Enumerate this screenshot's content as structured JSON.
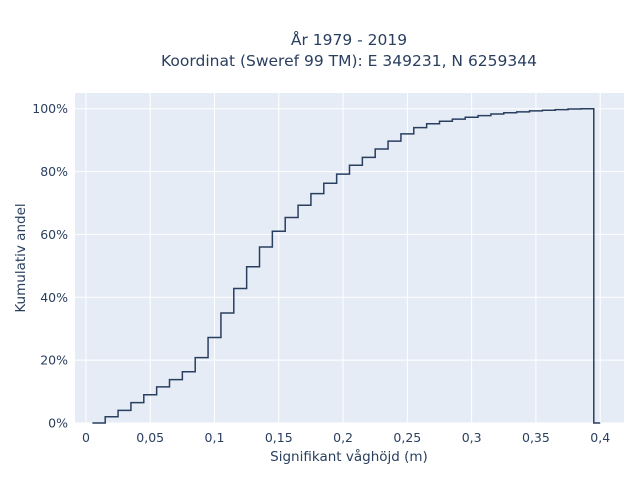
{
  "chart_data": {
    "type": "line",
    "line_shape": "step",
    "title_line1": "År 1979 - 2019",
    "title_line2": "Koordinat (Sweref 99 TM): E 349231, N 6259344",
    "xlabel": "Signifikant våghöjd (m)",
    "ylabel": "Kumulativ andel",
    "xlim": [
      -0.0085,
      0.4185
    ],
    "ylim": [
      0,
      1.05
    ],
    "grid": true,
    "x_ticks": [
      0,
      0.05,
      0.1,
      0.15,
      0.2,
      0.25,
      0.3,
      0.35,
      0.4
    ],
    "x_tick_labels": [
      "0",
      "0,05",
      "0,1",
      "0,15",
      "0,2",
      "0,25",
      "0,3",
      "0,35",
      "0,4"
    ],
    "y_ticks": [
      0,
      0.2,
      0.4,
      0.6,
      0.8,
      1.0
    ],
    "y_tick_labels": [
      "0%",
      "20%",
      "40%",
      "60%",
      "80%",
      "100%"
    ],
    "line_color": "#2a3f5f",
    "plot_bg": "#e5ecf6",
    "grid_color": "#ffffff",
    "series": [
      {
        "x": [
          0.01,
          0.02,
          0.03,
          0.04,
          0.05,
          0.06,
          0.07,
          0.08,
          0.09,
          0.1,
          0.11,
          0.12,
          0.13,
          0.14,
          0.15,
          0.16,
          0.17,
          0.18,
          0.19,
          0.2,
          0.21,
          0.22,
          0.23,
          0.24,
          0.25,
          0.26,
          0.27,
          0.28,
          0.29,
          0.3,
          0.31,
          0.32,
          0.33,
          0.34,
          0.35,
          0.36,
          0.37,
          0.38,
          0.39,
          0.4
        ],
        "y": [
          0.0,
          0.02,
          0.04,
          0.065,
          0.09,
          0.115,
          0.138,
          0.163,
          0.208,
          0.272,
          0.35,
          0.428,
          0.497,
          0.56,
          0.61,
          0.654,
          0.693,
          0.73,
          0.763,
          0.792,
          0.82,
          0.845,
          0.872,
          0.897,
          0.92,
          0.94,
          0.952,
          0.96,
          0.967,
          0.973,
          0.978,
          0.983,
          0.987,
          0.99,
          0.993,
          0.995,
          0.997,
          0.999,
          1.0,
          0.0
        ]
      }
    ]
  }
}
